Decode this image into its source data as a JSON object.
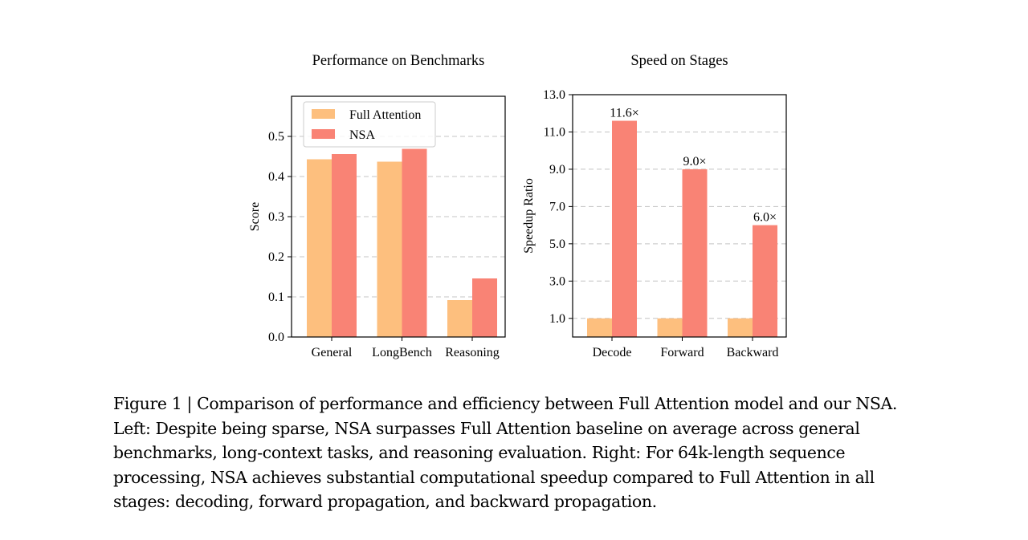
{
  "chart_data": [
    {
      "type": "bar",
      "title": "Performance on Benchmarks",
      "xlabel": "",
      "ylabel": "Score",
      "categories": [
        "General",
        "LongBench",
        "Reasoning"
      ],
      "series": [
        {
          "name": "Full Attention",
          "values": [
            0.443,
            0.437,
            0.092
          ],
          "color": "#FDBF7E"
        },
        {
          "name": "NSA",
          "values": [
            0.456,
            0.469,
            0.146
          ],
          "color": "#F98375"
        }
      ],
      "ylim": [
        0,
        0.6
      ],
      "yticks": [
        "0.0",
        "0.1",
        "0.2",
        "0.3",
        "0.4",
        "0.5"
      ],
      "grid": "horizontal dashed",
      "legend": "top-left"
    },
    {
      "type": "bar",
      "title": "Speed on Stages",
      "xlabel": "",
      "ylabel": "Speedup Ratio",
      "categories": [
        "Decode",
        "Forward",
        "Backward"
      ],
      "series": [
        {
          "values": [
            1.0,
            1.0,
            1.0
          ],
          "color": "#FDBF7E"
        },
        {
          "values": [
            11.6,
            9.0,
            6.0
          ],
          "color": "#F98375",
          "labels": [
            "11.6×",
            "9.0×",
            "6.0×"
          ]
        }
      ],
      "ylim": [
        0,
        13.0
      ],
      "yticks": [
        "1.0",
        "3.0",
        "5.0",
        "7.0",
        "9.0",
        "11.0",
        "13.0"
      ],
      "grid": "horizontal dashed"
    }
  ],
  "caption": {
    "lines": [
      "Figure 1 | Comparison of performance and efficiency between Full Attention model and our NSA.",
      "Left: Despite being sparse, NSA surpasses Full Attention baseline on average across general",
      "benchmarks, long-context tasks, and reasoning evaluation. Right: For 64k-length sequence",
      "processing, NSA achieves substantial computational speedup compared to Full Attention in all",
      "stages: decoding, forward propagation, and backward propagation."
    ]
  }
}
